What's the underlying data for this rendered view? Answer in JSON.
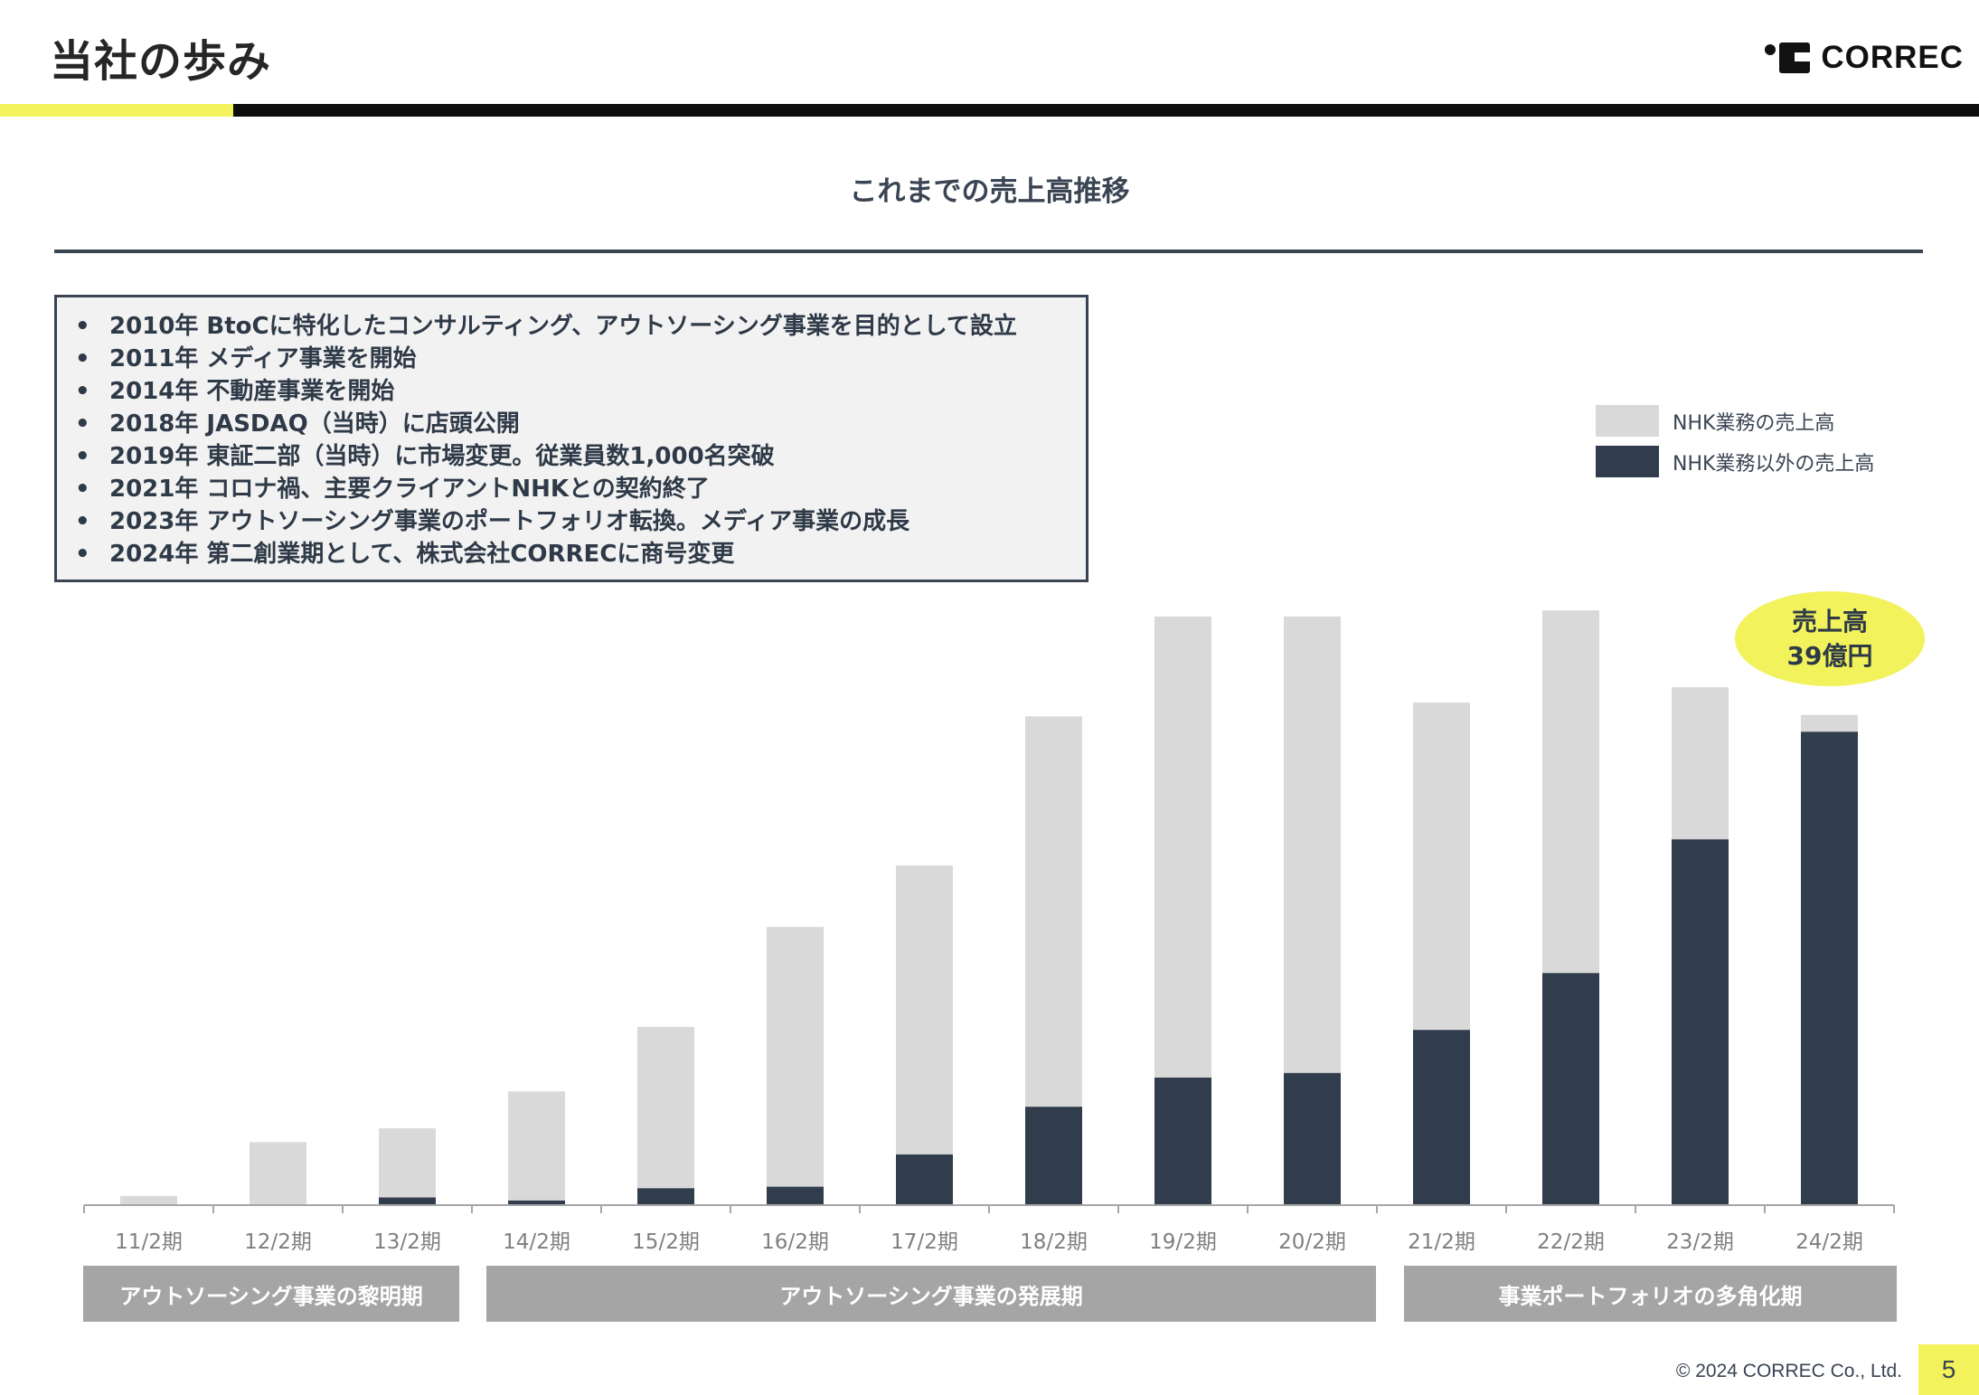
{
  "header": {
    "title": "当社の歩み",
    "logo_text": "CORREC",
    "accent_color": "#f2f25c"
  },
  "section": {
    "title": "これまでの売上高推移"
  },
  "history": [
    "2010年 BtoCに特化したコンサルティング、アウトソーシング事業を目的として設立",
    "2011年 メディア事業を開始",
    "2014年 不動産事業を開始",
    "2018年 JASDAQ（当時）に店頭公開",
    "2019年 東証二部（当時）に市場変更。従業員数1,000名突破",
    "2021年 コロナ禍、主要クライアントNHKとの契約終了",
    "2023年 アウトソーシング事業のポートフォリオ転換。メディア事業の成長",
    "2024年 第二創業期として、株式会社CORRECに商号変更"
  ],
  "history_bullet": "•",
  "badge": {
    "line1": "売上高",
    "line2": "39億円"
  },
  "chart_data": {
    "type": "bar",
    "stacked": true,
    "categories": [
      "11/2期",
      "12/2期",
      "13/2期",
      "14/2期",
      "15/2期",
      "16/2期",
      "17/2期",
      "18/2期",
      "19/2期",
      "20/2期",
      "21/2期",
      "22/2期",
      "23/2期",
      "24/2期"
    ],
    "series": [
      {
        "name": "NHK業務以外の売上高",
        "color": "#313d4d",
        "values": [
          0,
          0,
          0.5,
          0.3,
          1.1,
          1.2,
          3.3,
          6.4,
          8.3,
          8.6,
          11.4,
          15.1,
          23.8,
          30.8
        ]
      },
      {
        "name": "NHK業務の売上高",
        "color": "#d9d9d9",
        "values": [
          0.6,
          4.1,
          4.5,
          7.1,
          10.5,
          16.9,
          18.8,
          25.4,
          30.0,
          29.7,
          21.3,
          23.6,
          9.9,
          1.1
        ]
      }
    ],
    "title": "これまでの売上高推移",
    "xlabel": "",
    "ylabel": "",
    "ylim": [
      0,
      40
    ],
    "grid": false,
    "legend_position": "top-right",
    "annotations": [
      "売上高 39億円"
    ]
  },
  "periods": [
    {
      "label": "アウトソーシング事業の黎明期",
      "from": "11/2期",
      "to": "13/2期"
    },
    {
      "label": "アウトソーシング事業の発展期",
      "from": "14/2期",
      "to": "20/2期"
    },
    {
      "label": "事業ポートフォリオの多角化期",
      "from": "21/2期",
      "to": "24/2期"
    }
  ],
  "footer": {
    "copyright": "© 2024 CORREC Co., Ltd.",
    "page_number": "5"
  }
}
